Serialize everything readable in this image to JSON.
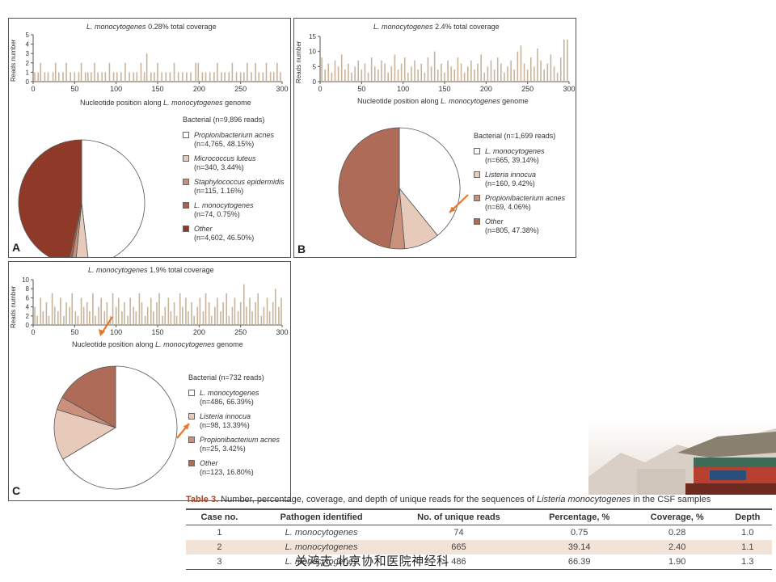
{
  "panels": [
    {
      "label": "A",
      "title_species": "L. monocytogenes",
      "title_rest": "0.28% total coverage",
      "xlabel_prefix": "Nucleotide position along",
      "xlabel_species": "L. monocytogenes",
      "xlabel_suffix": "genome",
      "ylabel": "Reads number",
      "legend_header": "Bacterial (n=9,896 reads)",
      "legend": [
        {
          "name": "Propionibacterium acnes",
          "count": "(n=4,765, 48.15%)",
          "color": "#ffffff"
        },
        {
          "name": "Micrococcus luteus",
          "count": "(n=340, 3.44%)",
          "color": "#e8cabb"
        },
        {
          "name": "Staphylococcus epidermidis",
          "count": "(n=115, 1.16%)",
          "color": "#c9917c"
        },
        {
          "name": "L. monocytogenes",
          "count": "(n=74, 0.75%)",
          "color": "#a9604c"
        },
        {
          "name": "Other",
          "count": "(n=4,602, 46.50%)",
          "color": "#8f3a28"
        }
      ]
    },
    {
      "label": "B",
      "title_species": "L. monocytogenes",
      "title_rest": "2.4% total coverage",
      "xlabel_prefix": "Nucleotide position along",
      "xlabel_species": "L. monocytogenes",
      "xlabel_suffix": "genome",
      "ylabel": "Reads number",
      "legend_header": "Bacterial (n=1,699 reads)",
      "legend": [
        {
          "name": "L. monocytogenes",
          "count": "(n=665, 39.14%)",
          "color": "#ffffff"
        },
        {
          "name": "Listeria innocua",
          "count": "(n=160, 9.42%)",
          "color": "#e8cabb"
        },
        {
          "name": "Propionibacterium acnes",
          "count": "(n=69, 4.06%)",
          "color": "#c9917c"
        },
        {
          "name": "Other",
          "count": "(n=805, 47.38%)",
          "color": "#ad6b58"
        }
      ]
    },
    {
      "label": "C",
      "title_species": "L. monocytogenes",
      "title_rest": "1.9% total coverage",
      "xlabel_prefix": "Nucleotide position along",
      "xlabel_species": "L. monocytogenes",
      "xlabel_suffix": "genome",
      "ylabel": "Reads number",
      "legend_header": "Bacterial (n=732 reads)",
      "legend": [
        {
          "name": "L. monocytogenes",
          "count": "(n=486, 66.39%)",
          "color": "#ffffff"
        },
        {
          "name": "Listeria innocua",
          "count": "(n=98, 13.39%)",
          "color": "#e8cabb"
        },
        {
          "name": "Propionibacterium acnes",
          "count": "(n=25, 3.42%)",
          "color": "#c9917c"
        },
        {
          "name": "Other",
          "count": "(n=123, 16.80%)",
          "color": "#ad6b58"
        }
      ]
    }
  ],
  "chart_data": [
    {
      "type": "bar",
      "panel": "A",
      "title": "L. monocytogenes 0.28% total coverage",
      "xlabel": "Nucleotide position along L. monocytogenes genome",
      "ylabel": "Reads number",
      "xlim": [
        0,
        300
      ],
      "ylim": [
        0,
        5
      ],
      "xticks": [
        0,
        50,
        100,
        150,
        200,
        250,
        300
      ],
      "yticks": [
        0,
        1,
        2,
        3,
        4,
        5
      ],
      "x": [
        2,
        6,
        9,
        14,
        18,
        24,
        27,
        31,
        36,
        40,
        45,
        50,
        55,
        58,
        63,
        66,
        70,
        74,
        78,
        83,
        87,
        92,
        97,
        101,
        106,
        111,
        116,
        121,
        125,
        130,
        134,
        137,
        142,
        146,
        150,
        155,
        160,
        165,
        170,
        175,
        180,
        185,
        190,
        196,
        199,
        204,
        208,
        213,
        218,
        222,
        227,
        231,
        236,
        240,
        245,
        250,
        254,
        258,
        263,
        268,
        272,
        277,
        281,
        286,
        290,
        294,
        298
      ],
      "values": [
        1,
        1,
        2,
        1,
        1,
        1,
        2,
        1,
        1,
        2,
        1,
        1,
        1,
        2,
        1,
        1,
        1,
        2,
        1,
        1,
        1,
        2,
        1,
        1,
        1,
        2,
        1,
        1,
        1,
        2,
        1,
        3,
        1,
        1,
        2,
        1,
        1,
        1,
        2,
        1,
        1,
        1,
        1,
        2,
        2,
        1,
        1,
        1,
        1,
        2,
        1,
        1,
        1,
        2,
        1,
        1,
        1,
        2,
        1,
        2,
        1,
        1,
        2,
        1,
        1,
        2,
        1
      ]
    },
    {
      "type": "bar",
      "panel": "B",
      "title": "L. monocytogenes 2.4% total coverage",
      "xlabel": "Nucleotide position along L. monocytogenes genome",
      "ylabel": "Reads number",
      "xlim": [
        0,
        300
      ],
      "ylim": [
        0,
        15
      ],
      "xticks": [
        0,
        50,
        100,
        150,
        200,
        250,
        300
      ],
      "yticks": [
        0,
        5,
        10,
        15
      ],
      "x": [
        2,
        6,
        10,
        14,
        18,
        22,
        26,
        30,
        34,
        38,
        42,
        46,
        50,
        54,
        58,
        62,
        66,
        70,
        74,
        78,
        82,
        86,
        90,
        94,
        98,
        102,
        106,
        110,
        114,
        118,
        122,
        126,
        130,
        134,
        138,
        142,
        146,
        150,
        154,
        158,
        162,
        166,
        170,
        174,
        178,
        182,
        186,
        190,
        194,
        198,
        202,
        206,
        210,
        214,
        218,
        222,
        226,
        230,
        234,
        238,
        242,
        246,
        250,
        254,
        258,
        262,
        266,
        270,
        274,
        278,
        282,
        286,
        290,
        294,
        298
      ],
      "values": [
        8,
        4,
        6,
        3,
        7,
        5,
        9,
        4,
        6,
        3,
        5,
        7,
        4,
        6,
        3,
        8,
        5,
        4,
        7,
        6,
        3,
        5,
        9,
        4,
        6,
        8,
        3,
        5,
        7,
        4,
        6,
        3,
        8,
        5,
        10,
        4,
        6,
        3,
        7,
        5,
        4,
        8,
        6,
        3,
        5,
        7,
        4,
        6,
        9,
        3,
        5,
        7,
        4,
        8,
        6,
        3,
        5,
        7,
        4,
        10,
        12,
        6,
        4,
        8,
        5,
        11,
        7,
        4,
        6,
        9,
        5,
        3,
        8,
        14,
        14
      ]
    },
    {
      "type": "bar",
      "panel": "C",
      "title": "L. monocytogenes 1.9% total coverage",
      "xlabel": "Nucleotide position along L. monocytogenes genome",
      "ylabel": "Reads number",
      "xlim": [
        0,
        300
      ],
      "ylim": [
        0,
        10
      ],
      "xticks": [
        0,
        50,
        100,
        150,
        200,
        250,
        300
      ],
      "yticks": [
        0,
        2,
        4,
        6,
        8,
        10
      ],
      "x": [
        2,
        5,
        9,
        12,
        16,
        19,
        23,
        26,
        30,
        33,
        37,
        40,
        44,
        47,
        51,
        54,
        58,
        61,
        65,
        68,
        72,
        75,
        79,
        82,
        86,
        89,
        93,
        96,
        100,
        103,
        107,
        110,
        114,
        117,
        121,
        124,
        128,
        131,
        135,
        138,
        142,
        145,
        149,
        152,
        156,
        159,
        163,
        166,
        170,
        173,
        177,
        180,
        184,
        187,
        191,
        194,
        198,
        201,
        205,
        208,
        212,
        215,
        219,
        222,
        226,
        229,
        233,
        236,
        240,
        243,
        247,
        250,
        254,
        257,
        261,
        264,
        268,
        271,
        275,
        278,
        282,
        285,
        289,
        292,
        296,
        299
      ],
      "values": [
        4,
        2,
        6,
        3,
        5,
        2,
        7,
        4,
        3,
        6,
        2,
        5,
        4,
        7,
        3,
        2,
        6,
        4,
        5,
        3,
        7,
        2,
        4,
        6,
        3,
        5,
        2,
        7,
        4,
        6,
        3,
        5,
        2,
        6,
        4,
        3,
        7,
        5,
        2,
        4,
        6,
        3,
        5,
        7,
        2,
        4,
        6,
        3,
        5,
        2,
        7,
        4,
        6,
        3,
        5,
        2,
        4,
        6,
        3,
        7,
        5,
        2,
        4,
        6,
        3,
        5,
        7,
        2,
        4,
        6,
        3,
        5,
        9,
        4,
        6,
        3,
        5,
        7,
        2,
        4,
        6,
        3,
        5,
        8,
        4,
        6
      ]
    },
    {
      "type": "pie",
      "panel": "A",
      "title": "Bacterial (n=9,896 reads)",
      "labels": [
        "Propionibacterium acnes",
        "Micrococcus luteus",
        "Staphylococcus epidermidis",
        "L. monocytogenes",
        "Other"
      ],
      "values": [
        48.15,
        3.44,
        1.16,
        0.75,
        46.5
      ],
      "colors": [
        "#ffffff",
        "#e8cabb",
        "#c9917c",
        "#a9604c",
        "#8f3a28"
      ]
    },
    {
      "type": "pie",
      "panel": "B",
      "title": "Bacterial (n=1,699 reads)",
      "labels": [
        "L. monocytogenes",
        "Listeria innocua",
        "Propionibacterium acnes",
        "Other"
      ],
      "values": [
        39.14,
        9.42,
        4.06,
        47.38
      ],
      "colors": [
        "#ffffff",
        "#e8cabb",
        "#c9917c",
        "#ad6b58"
      ]
    },
    {
      "type": "pie",
      "panel": "C",
      "title": "Bacterial (n=732 reads)",
      "labels": [
        "L. monocytogenes",
        "Listeria innocua",
        "Propionibacterium acnes",
        "Other"
      ],
      "values": [
        66.39,
        13.39,
        3.42,
        16.8
      ],
      "colors": [
        "#ffffff",
        "#e8cabb",
        "#c9917c",
        "#ad6b58"
      ]
    },
    {
      "type": "table",
      "panel": "Table 3",
      "columns": [
        "Case no.",
        "Pathogen identified",
        "No. of unique reads",
        "Percentage, %",
        "Coverage, %",
        "Depth"
      ],
      "rows": [
        [
          "1",
          "L. monocytogenes",
          "74",
          "0.75",
          "0.28",
          "1.0"
        ],
        [
          "2",
          "L. monocytogenes",
          "665",
          "39.14",
          "2.40",
          "1.1"
        ],
        [
          "3",
          "L. monocytogenes",
          "486",
          "66.39",
          "1.90",
          "1.3"
        ]
      ]
    }
  ],
  "table": {
    "caption_label": "Table 3.",
    "caption_text": "Number, percentage, coverage, and depth of unique reads for the sequences of",
    "caption_species": "Listeria monocytogenes",
    "caption_end": "in the CSF samples",
    "columns": [
      "Case no.",
      "Pathogen identified",
      "No. of unique reads",
      "Percentage, %",
      "Coverage, %",
      "Depth"
    ],
    "rows": [
      [
        "1",
        "L. monocytogenes",
        "74",
        "0.75",
        "0.28",
        "1.0"
      ],
      [
        "2",
        "L. monocytogenes",
        "665",
        "39.14",
        "2.40",
        "1.1"
      ],
      [
        "3",
        "L. monocytogenes",
        "486",
        "66.39",
        "1.90",
        "1.3"
      ]
    ]
  },
  "watermark": "关鸿志 北京协和医院神经科",
  "colors": {
    "bar": "#c8b49c",
    "arrow": "#e8772a",
    "panel_border": "#555555",
    "table_stripe": "#f2e3d8",
    "table_caption_label": "#b0401c"
  }
}
